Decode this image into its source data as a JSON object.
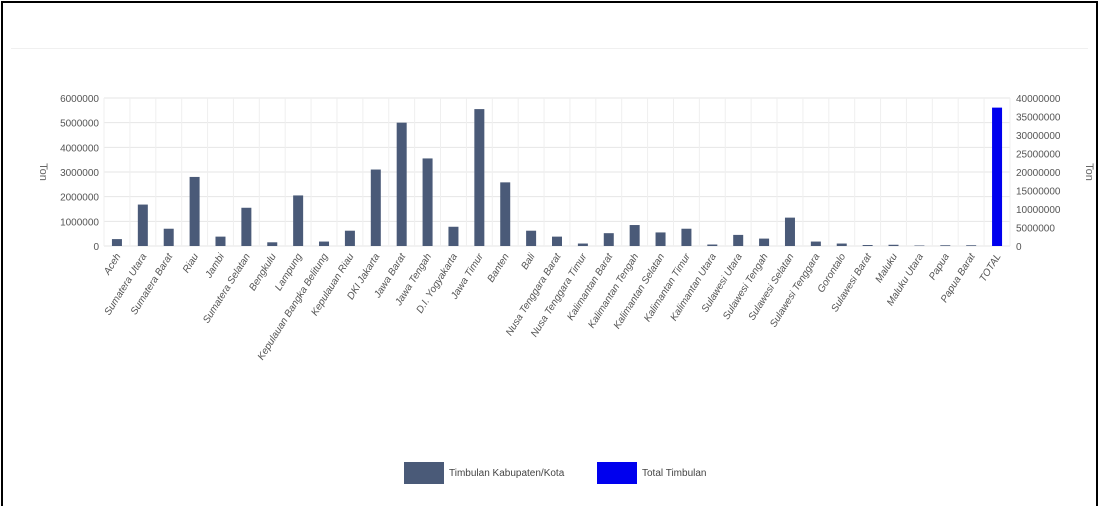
{
  "chart_data": {
    "type": "bar",
    "categories": [
      "Aceh",
      "Sumatera Utara",
      "Sumatera Barat",
      "Riau",
      "Jambi",
      "Sumatera Selatan",
      "Bengkulu",
      "Lampung",
      "Kepulauan Bangka Belitung",
      "Kepulauan Riau",
      "DKI Jakarta",
      "Jawa Barat",
      "Jawa Tengah",
      "D.I. Yogyakarta",
      "Jawa Timur",
      "Banten",
      "Bali",
      "Nusa Tenggara Barat",
      "Nusa Tenggara Timur",
      "Kalimantan Barat",
      "Kalimantan Tengah",
      "Kalimantan Selatan",
      "Kalimantan Timur",
      "Kalimantan Utara",
      "Sulawesi Utara",
      "Sulawesi Tengah",
      "Sulawesi Selatan",
      "Sulawesi Tenggara",
      "Gorontalo",
      "Sulawesi Barat",
      "Maluku",
      "Maluku Utara",
      "Papua",
      "Papua Barat",
      "TOTAL"
    ],
    "series": [
      {
        "name": "Timbulan Kabupaten/Kota",
        "color": "#4a5a78",
        "axis": "left",
        "values": [
          280000,
          1680000,
          700000,
          2800000,
          380000,
          1550000,
          150000,
          2050000,
          180000,
          620000,
          3100000,
          5000000,
          3550000,
          780000,
          5550000,
          2580000,
          620000,
          380000,
          100000,
          520000,
          850000,
          550000,
          700000,
          60000,
          450000,
          300000,
          1150000,
          180000,
          100000,
          40000,
          50000,
          20000,
          30000,
          30000,
          null
        ]
      },
      {
        "name": "Total Timbulan",
        "color": "#0000ee",
        "axis": "right",
        "values": [
          null,
          null,
          null,
          null,
          null,
          null,
          null,
          null,
          null,
          null,
          null,
          null,
          null,
          null,
          null,
          null,
          null,
          null,
          null,
          null,
          null,
          null,
          null,
          null,
          null,
          null,
          null,
          null,
          null,
          null,
          null,
          null,
          null,
          null,
          37400000
        ]
      }
    ],
    "y_left": {
      "label": "Ton",
      "ticks": [
        "0",
        "1000000",
        "2000000",
        "3000000",
        "4000000",
        "5000000",
        "6000000"
      ],
      "ylim": [
        0,
        6000000
      ]
    },
    "y_right": {
      "label": "Ton",
      "ticks": [
        "0",
        "5000000",
        "10000000",
        "15000000",
        "20000000",
        "25000000",
        "30000000",
        "35000000",
        "40000000"
      ],
      "ylim": [
        0,
        40000000
      ]
    },
    "grid": true,
    "legend_position": "bottom"
  }
}
